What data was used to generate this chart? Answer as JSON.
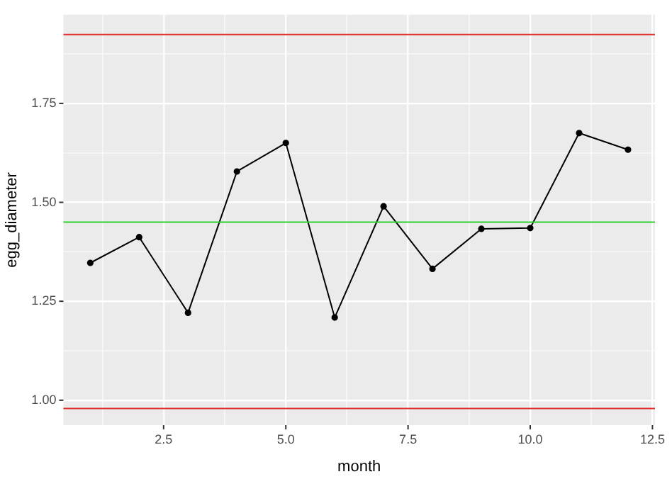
{
  "chart_data": {
    "type": "line",
    "xlabel": "month",
    "ylabel": "egg_diameter",
    "x": [
      1,
      2,
      3,
      4,
      5,
      6,
      7,
      8,
      9,
      10,
      11,
      12
    ],
    "series": [
      {
        "color": "#000000",
        "values": [
          1.347,
          1.412,
          1.221,
          1.578,
          1.65,
          1.209,
          1.49,
          1.332,
          1.433,
          1.435,
          1.675,
          1.633
        ]
      }
    ],
    "xlim": [
      0.45,
      12.55
    ],
    "ylim": [
      0.937,
      1.974
    ],
    "xticks": [
      {
        "value": 1.25,
        "label": null
      },
      2.5,
      {
        "value": 3.75,
        "label": null
      },
      {
        "value": 5,
        "label": "5.0"
      },
      {
        "value": 6.25,
        "label": null
      },
      7.5,
      {
        "value": 8.75,
        "label": null
      },
      {
        "value": 10,
        "label": "10.0"
      },
      {
        "value": 11.25,
        "label": null
      },
      12.5
    ],
    "yticks": [
      {
        "value": 1.125,
        "label": null
      },
      {
        "value": 1,
        "label": "1.00"
      },
      1.25,
      {
        "value": 1.375,
        "label": null
      },
      {
        "value": 1.5,
        "label": "1.50"
      },
      {
        "value": 1.625,
        "label": null
      },
      1.75,
      {
        "value": 1.875,
        "label": null
      }
    ],
    "ref_lines": [
      {
        "axis": "y",
        "value": 1.924,
        "label": null,
        "color": "#e03030"
      },
      {
        "axis": "y",
        "value": 1.45,
        "label": null,
        "color": "#30d030"
      },
      {
        "axis": "y",
        "value": 0.979,
        "label": null,
        "color": "#e03030"
      }
    ],
    "grid": true,
    "marker": "circle",
    "line_style": "solid",
    "legend": false
  }
}
